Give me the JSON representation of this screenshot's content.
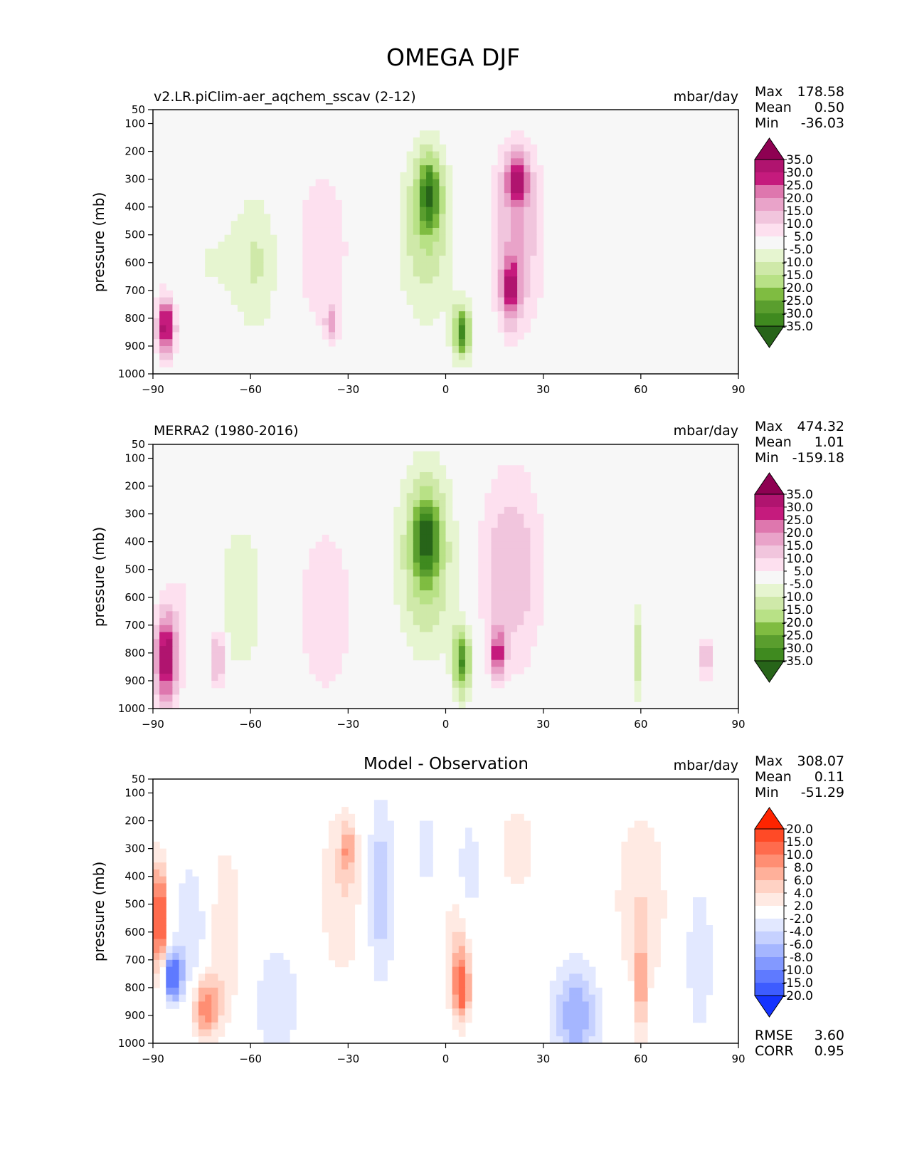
{
  "title": "OMEGA DJF",
  "ylabel": "pressure (mb)",
  "units": "mbar/day",
  "x_ticks": [
    "−90",
    "−60",
    "−30",
    "0",
    "30",
    "60",
    "90"
  ],
  "y_ticks": [
    "50",
    "100",
    "200",
    "300",
    "400",
    "500",
    "600",
    "700",
    "800",
    "900",
    "1000"
  ],
  "stat_labels": {
    "max": "Max",
    "mean": "Mean",
    "min": "Min",
    "rmse": "RMSE",
    "corr": "CORR"
  },
  "chart_data": [
    {
      "type": "heatmap",
      "title": "v2.LR.piClim-aer_aqchem_sscav (2-12)",
      "units": "mbar/day",
      "xlabel": "",
      "ylabel": "pressure (mb)",
      "xlim": [
        -90,
        90
      ],
      "ylim": [
        1000,
        50
      ],
      "x_ticks": [
        -90,
        -60,
        -30,
        0,
        30,
        60,
        90
      ],
      "y_ticks": [
        50,
        100,
        200,
        300,
        400,
        500,
        600,
        700,
        800,
        900,
        1000
      ],
      "stats": {
        "max": "178.58",
        "mean": "0.50",
        "min": "-36.03"
      },
      "colorbar": {
        "labels": [
          "35.0",
          "30.0",
          "25.0",
          "20.0",
          "15.0",
          "10.0",
          "5.0",
          "-5.0",
          "-10.0",
          "-15.0",
          "-20.0",
          "-25.0",
          "-30.0",
          "-35.0"
        ],
        "colors": [
          "#8e0152",
          "#b0146f",
          "#c51b7d",
          "#de77ae",
          "#e9a3c9",
          "#f1c5dd",
          "#fde0ef",
          "#f7f7f7",
          "#e6f5d0",
          "#cfe9a9",
          "#b8e186",
          "#7fbc41",
          "#5a9e2e",
          "#3f8a1f",
          "#276419"
        ]
      },
      "regions": [
        {
          "x": -73,
          "y": 600,
          "value": -5,
          "sx": 8,
          "sy": 200
        },
        {
          "x": -58,
          "y": 600,
          "value": -10,
          "sx": 5,
          "sy": 180
        },
        {
          "x": -38,
          "y": 550,
          "value": 10,
          "sx": 6,
          "sy": 220
        },
        {
          "x": -35,
          "y": 820,
          "value": 15,
          "sx": 1.5,
          "sy": 40
        },
        {
          "x": -6,
          "y": 480,
          "value": -15,
          "sx": 6,
          "sy": 230
        },
        {
          "x": -5,
          "y": 350,
          "value": -25,
          "sx": 2.5,
          "sy": 90
        },
        {
          "x": 5,
          "y": 850,
          "value": -30,
          "sx": 2,
          "sy": 70
        },
        {
          "x": 22,
          "y": 500,
          "value": 15,
          "sx": 6,
          "sy": 250
        },
        {
          "x": 22,
          "y": 300,
          "value": 25,
          "sx": 2.5,
          "sy": 60
        },
        {
          "x": 20,
          "y": 700,
          "value": 25,
          "sx": 2,
          "sy": 80
        },
        {
          "x": -86,
          "y": 830,
          "value": 35,
          "sx": 2,
          "sy": 80
        },
        {
          "x": 56,
          "y": 700,
          "value": -5,
          "sx": 4,
          "sy": 220
        },
        {
          "x": 78,
          "y": 650,
          "value": 5,
          "sx": 2,
          "sy": 180
        }
      ]
    },
    {
      "type": "heatmap",
      "title": "MERRA2 (1980-2016)",
      "units": "mbar/day",
      "xlabel": "",
      "ylabel": "pressure (mb)",
      "xlim": [
        -90,
        90
      ],
      "ylim": [
        1000,
        50
      ],
      "x_ticks": [
        -90,
        -60,
        -30,
        0,
        30,
        60,
        90
      ],
      "y_ticks": [
        50,
        100,
        200,
        300,
        400,
        500,
        600,
        700,
        800,
        900,
        1000
      ],
      "stats": {
        "max": "474.32",
        "mean": "1.01",
        "min": "-159.18"
      },
      "colorbar": {
        "labels": [
          "35.0",
          "30.0",
          "25.0",
          "20.0",
          "15.0",
          "10.0",
          "5.0",
          "-5.0",
          "-10.0",
          "-15.0",
          "-20.0",
          "-25.0",
          "-30.0",
          "-35.0"
        ],
        "colors": [
          "#8e0152",
          "#b0146f",
          "#c51b7d",
          "#de77ae",
          "#e9a3c9",
          "#f1c5dd",
          "#fde0ef",
          "#f7f7f7",
          "#e6f5d0",
          "#cfe9a9",
          "#b8e186",
          "#7fbc41",
          "#5a9e2e",
          "#3f8a1f",
          "#276419"
        ]
      },
      "regions": [
        {
          "x": -80,
          "y": 600,
          "value": 5,
          "sx": 4,
          "sy": 220
        },
        {
          "x": -63,
          "y": 600,
          "value": -10,
          "sx": 5,
          "sy": 200
        },
        {
          "x": -37,
          "y": 650,
          "value": 10,
          "sx": 6,
          "sy": 230
        },
        {
          "x": -6,
          "y": 450,
          "value": -20,
          "sx": 6,
          "sy": 230
        },
        {
          "x": -6,
          "y": 380,
          "value": -25,
          "sx": 2.5,
          "sy": 90
        },
        {
          "x": 5,
          "y": 830,
          "value": -30,
          "sx": 2,
          "sy": 90
        },
        {
          "x": 20,
          "y": 500,
          "value": 15,
          "sx": 7,
          "sy": 260
        },
        {
          "x": 16,
          "y": 800,
          "value": 25,
          "sx": 1.5,
          "sy": 60
        },
        {
          "x": -86,
          "y": 820,
          "value": 35,
          "sx": 2.5,
          "sy": 120
        },
        {
          "x": -70,
          "y": 820,
          "value": 20,
          "sx": 1.5,
          "sy": 80
        },
        {
          "x": 59,
          "y": 800,
          "value": -15,
          "sx": 1,
          "sy": 120
        },
        {
          "x": 80,
          "y": 820,
          "value": 20,
          "sx": 1,
          "sy": 60
        }
      ]
    },
    {
      "type": "heatmap",
      "title": "Model - Observation",
      "units": "mbar/day",
      "xlabel": "",
      "ylabel": "pressure (mb)",
      "xlim": [
        -90,
        90
      ],
      "ylim": [
        1000,
        50
      ],
      "x_ticks": [
        -90,
        -60,
        -30,
        0,
        30,
        60,
        90
      ],
      "y_ticks": [
        50,
        100,
        200,
        300,
        400,
        500,
        600,
        700,
        800,
        900,
        1000
      ],
      "stats": {
        "max": "308.07",
        "mean": "0.11",
        "min": "-51.29",
        "rmse": "3.60",
        "corr": "0.95"
      },
      "colorbar": {
        "labels": [
          "20.0",
          "15.0",
          "10.0",
          "8.0",
          "6.0",
          "4.0",
          "2.0",
          "-2.0",
          "-4.0",
          "-6.0",
          "-8.0",
          "-10.0",
          "-15.0",
          "-20.0"
        ],
        "colors": [
          "#ff2400",
          "#ff4a26",
          "#ff6b4d",
          "#ff8e73",
          "#ffb09a",
          "#ffd2c4",
          "#ffeae3",
          "#ffffff",
          "#e2e8ff",
          "#c6d1ff",
          "#a5b6ff",
          "#8399ff",
          "#5f7aff",
          "#3d5cff",
          "#1433ff"
        ]
      },
      "regions": [
        {
          "x": -88,
          "y": 550,
          "value": 15,
          "sx": 1.5,
          "sy": 140
        },
        {
          "x": -84,
          "y": 760,
          "value": -15,
          "sx": 2,
          "sy": 60
        },
        {
          "x": -74,
          "y": 870,
          "value": 10,
          "sx": 3,
          "sy": 80
        },
        {
          "x": -68,
          "y": 600,
          "value": 4,
          "sx": 4,
          "sy": 250
        },
        {
          "x": -78,
          "y": 600,
          "value": -4,
          "sx": 4,
          "sy": 200
        },
        {
          "x": -52,
          "y": 850,
          "value": -4,
          "sx": 5,
          "sy": 150
        },
        {
          "x": -32,
          "y": 450,
          "value": 4,
          "sx": 5,
          "sy": 240
        },
        {
          "x": -30,
          "y": 300,
          "value": 6,
          "sx": 1.5,
          "sy": 60
        },
        {
          "x": -20,
          "y": 450,
          "value": -6,
          "sx": 3,
          "sy": 230
        },
        {
          "x": -6,
          "y": 300,
          "value": -4,
          "sx": 1.5,
          "sy": 100
        },
        {
          "x": 4,
          "y": 700,
          "value": 6,
          "sx": 3,
          "sy": 160
        },
        {
          "x": 5,
          "y": 800,
          "value": 10,
          "sx": 1.5,
          "sy": 70
        },
        {
          "x": 7,
          "y": 400,
          "value": -4,
          "sx": 2.5,
          "sy": 150
        },
        {
          "x": 22,
          "y": 300,
          "value": 4,
          "sx": 4,
          "sy": 110
        },
        {
          "x": 40,
          "y": 900,
          "value": -8,
          "sx": 5,
          "sy": 130
        },
        {
          "x": 60,
          "y": 500,
          "value": 4,
          "sx": 6,
          "sy": 260
        },
        {
          "x": 60,
          "y": 800,
          "value": 8,
          "sx": 1,
          "sy": 120
        },
        {
          "x": 78,
          "y": 700,
          "value": -4,
          "sx": 3,
          "sy": 200
        }
      ]
    }
  ]
}
